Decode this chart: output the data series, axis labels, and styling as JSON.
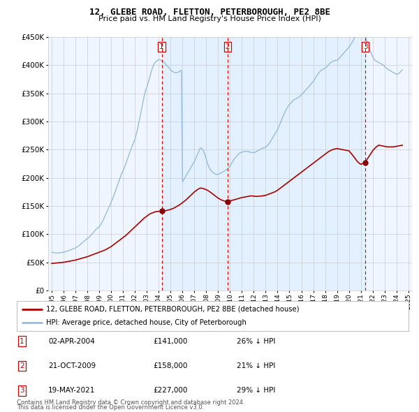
{
  "title": "12, GLEBE ROAD, FLETTON, PETERBOROUGH, PE2 8BE",
  "subtitle": "Price paid vs. HM Land Registry's House Price Index (HPI)",
  "legend_line1": "12, GLEBE ROAD, FLETTON, PETERBOROUGH, PE2 8BE (detached house)",
  "legend_line2": "HPI: Average price, detached house, City of Peterborough",
  "footnote1": "Contains HM Land Registry data © Crown copyright and database right 2024.",
  "footnote2": "This data is licensed under the Open Government Licence v3.0.",
  "sales": [
    {
      "num": 1,
      "date": "02-APR-2004",
      "price": 141000,
      "pct": "26%",
      "direction": "↓",
      "x_year": 2004.25
    },
    {
      "num": 2,
      "date": "21-OCT-2009",
      "price": 158000,
      "pct": "21%",
      "direction": "↓",
      "x_year": 2009.8
    },
    {
      "num": 3,
      "date": "19-MAY-2021",
      "price": 227000,
      "pct": "29%",
      "direction": "↓",
      "x_year": 2021.38
    }
  ],
  "price_line_color": "#aa0000",
  "hpi_line_color": "#99bbdd",
  "sale_marker_color": "#880000",
  "vline_color": "#cc0000",
  "grid_color": "#cccccc",
  "background_color": "#ffffff",
  "plot_bg_color": "#ddeeff",
  "shade_color": "#ddeeff",
  "ylim": [
    0,
    450000
  ],
  "xlim_start": 1994.7,
  "xlim_end": 2025.3,
  "hpi_years": [
    1995.0,
    1995.083,
    1995.167,
    1995.25,
    1995.333,
    1995.417,
    1995.5,
    1995.583,
    1995.667,
    1995.75,
    1995.833,
    1995.917,
    1996.0,
    1996.083,
    1996.167,
    1996.25,
    1996.333,
    1996.417,
    1996.5,
    1996.583,
    1996.667,
    1996.75,
    1996.833,
    1996.917,
    1997.0,
    1997.083,
    1997.167,
    1997.25,
    1997.333,
    1997.417,
    1997.5,
    1997.583,
    1997.667,
    1997.75,
    1997.833,
    1997.917,
    1998.0,
    1998.083,
    1998.167,
    1998.25,
    1998.333,
    1998.417,
    1998.5,
    1998.583,
    1998.667,
    1998.75,
    1998.833,
    1998.917,
    1999.0,
    1999.083,
    1999.167,
    1999.25,
    1999.333,
    1999.417,
    1999.5,
    1999.583,
    1999.667,
    1999.75,
    1999.833,
    1999.917,
    2000.0,
    2000.083,
    2000.167,
    2000.25,
    2000.333,
    2000.417,
    2000.5,
    2000.583,
    2000.667,
    2000.75,
    2000.833,
    2000.917,
    2001.0,
    2001.083,
    2001.167,
    2001.25,
    2001.333,
    2001.417,
    2001.5,
    2001.583,
    2001.667,
    2001.75,
    2001.833,
    2001.917,
    2002.0,
    2002.083,
    2002.167,
    2002.25,
    2002.333,
    2002.417,
    2002.5,
    2002.583,
    2002.667,
    2002.75,
    2002.833,
    2002.917,
    2003.0,
    2003.083,
    2003.167,
    2003.25,
    2003.333,
    2003.417,
    2003.5,
    2003.583,
    2003.667,
    2003.75,
    2003.833,
    2003.917,
    2004.0,
    2004.083,
    2004.167,
    2004.25,
    2004.333,
    2004.417,
    2004.5,
    2004.583,
    2004.667,
    2004.75,
    2004.833,
    2004.917,
    2005.0,
    2005.083,
    2005.167,
    2005.25,
    2005.333,
    2005.417,
    2005.5,
    2005.583,
    2005.667,
    2005.75,
    2005.833,
    2005.917,
    2006.0,
    2006.083,
    2006.167,
    2006.25,
    2006.333,
    2006.417,
    2006.5,
    2006.583,
    2006.667,
    2006.75,
    2006.833,
    2006.917,
    2007.0,
    2007.083,
    2007.167,
    2007.25,
    2007.333,
    2007.417,
    2007.5,
    2007.583,
    2007.667,
    2007.75,
    2007.833,
    2007.917,
    2008.0,
    2008.083,
    2008.167,
    2008.25,
    2008.333,
    2008.417,
    2008.5,
    2008.583,
    2008.667,
    2008.75,
    2008.833,
    2008.917,
    2009.0,
    2009.083,
    2009.167,
    2009.25,
    2009.333,
    2009.417,
    2009.5,
    2009.583,
    2009.667,
    2009.75,
    2009.833,
    2009.917,
    2010.0,
    2010.083,
    2010.167,
    2010.25,
    2010.333,
    2010.417,
    2010.5,
    2010.583,
    2010.667,
    2010.75,
    2010.833,
    2010.917,
    2011.0,
    2011.083,
    2011.167,
    2011.25,
    2011.333,
    2011.417,
    2011.5,
    2011.583,
    2011.667,
    2011.75,
    2011.833,
    2011.917,
    2012.0,
    2012.083,
    2012.167,
    2012.25,
    2012.333,
    2012.417,
    2012.5,
    2012.583,
    2012.667,
    2012.75,
    2012.833,
    2012.917,
    2013.0,
    2013.083,
    2013.167,
    2013.25,
    2013.333,
    2013.417,
    2013.5,
    2013.583,
    2013.667,
    2013.75,
    2013.833,
    2013.917,
    2014.0,
    2014.083,
    2014.167,
    2014.25,
    2014.333,
    2014.417,
    2014.5,
    2014.583,
    2014.667,
    2014.75,
    2014.833,
    2014.917,
    2015.0,
    2015.083,
    2015.167,
    2015.25,
    2015.333,
    2015.417,
    2015.5,
    2015.583,
    2015.667,
    2015.75,
    2015.833,
    2015.917,
    2016.0,
    2016.083,
    2016.167,
    2016.25,
    2016.333,
    2016.417,
    2016.5,
    2016.583,
    2016.667,
    2016.75,
    2016.833,
    2016.917,
    2017.0,
    2017.083,
    2017.167,
    2017.25,
    2017.333,
    2017.417,
    2017.5,
    2017.583,
    2017.667,
    2017.75,
    2017.833,
    2017.917,
    2018.0,
    2018.083,
    2018.167,
    2018.25,
    2018.333,
    2018.417,
    2018.5,
    2018.583,
    2018.667,
    2018.75,
    2018.833,
    2018.917,
    2019.0,
    2019.083,
    2019.167,
    2019.25,
    2019.333,
    2019.417,
    2019.5,
    2019.583,
    2019.667,
    2019.75,
    2019.833,
    2019.917,
    2020.0,
    2020.083,
    2020.167,
    2020.25,
    2020.333,
    2020.417,
    2020.5,
    2020.583,
    2020.667,
    2020.75,
    2020.833,
    2020.917,
    2021.0,
    2021.083,
    2021.167,
    2021.25,
    2021.333,
    2021.417,
    2021.5,
    2021.583,
    2021.667,
    2021.75,
    2021.833,
    2021.917,
    2022.0,
    2022.083,
    2022.167,
    2022.25,
    2022.333,
    2022.417,
    2022.5,
    2022.583,
    2022.667,
    2022.75,
    2022.833,
    2022.917,
    2023.0,
    2023.083,
    2023.167,
    2023.25,
    2023.333,
    2023.417,
    2023.5,
    2023.583,
    2023.667,
    2023.75,
    2023.833,
    2023.917,
    2024.0,
    2024.083,
    2024.167,
    2024.25,
    2024.333,
    2024.417,
    2024.5
  ],
  "hpi_values": [
    68000,
    67500,
    67200,
    67000,
    66800,
    66700,
    66600,
    66700,
    66900,
    67100,
    67400,
    67700,
    68000,
    68400,
    68900,
    69500,
    70100,
    70700,
    71400,
    72100,
    72800,
    73500,
    74100,
    74800,
    75500,
    76500,
    77600,
    79000,
    80500,
    82000,
    83500,
    85000,
    86500,
    88000,
    89500,
    91000,
    92000,
    93500,
    95000,
    97000,
    99000,
    101000,
    103000,
    105000,
    107000,
    109000,
    110500,
    112000,
    113500,
    116000,
    118500,
    122000,
    125500,
    129000,
    133000,
    137000,
    141000,
    145000,
    149000,
    153000,
    157000,
    161000,
    165500,
    170000,
    175000,
    180000,
    185000,
    190000,
    195000,
    200000,
    205000,
    209000,
    213000,
    217000,
    221000,
    226000,
    231000,
    236000,
    241000,
    246000,
    251000,
    256000,
    260000,
    264000,
    268000,
    275000,
    282000,
    290000,
    299000,
    307000,
    316000,
    325000,
    334000,
    342000,
    350000,
    357000,
    361000,
    367000,
    373000,
    379000,
    386000,
    392000,
    397000,
    401000,
    404000,
    406000,
    408000,
    409000,
    410000,
    410000,
    409000,
    408000,
    407000,
    406000,
    404000,
    402000,
    400000,
    398000,
    396000,
    394000,
    392000,
    390000,
    389000,
    388000,
    387000,
    387000,
    387000,
    387000,
    388000,
    389000,
    390000,
    391000,
    193000,
    196000,
    199000,
    202000,
    205000,
    208000,
    211000,
    214000,
    217000,
    220000,
    223000,
    226000,
    229000,
    233000,
    237000,
    241000,
    245000,
    249000,
    253000,
    253000,
    251000,
    248000,
    244000,
    239000,
    233000,
    227000,
    222000,
    218000,
    215000,
    213000,
    211000,
    209000,
    208000,
    207000,
    206000,
    206000,
    206000,
    207000,
    208000,
    209000,
    210000,
    211000,
    212000,
    213000,
    214000,
    215000,
    217000,
    219000,
    221000,
    224000,
    227000,
    230000,
    233000,
    235000,
    237000,
    239000,
    241000,
    243000,
    244000,
    245000,
    246000,
    246000,
    247000,
    247000,
    247000,
    247000,
    247000,
    246000,
    246000,
    245000,
    245000,
    245000,
    245000,
    245000,
    246000,
    247000,
    248000,
    249000,
    250000,
    251000,
    252000,
    253000,
    253000,
    254000,
    255000,
    256000,
    258000,
    260000,
    262000,
    265000,
    268000,
    271000,
    274000,
    277000,
    280000,
    283000,
    286000,
    290000,
    294000,
    298000,
    303000,
    307000,
    311000,
    315000,
    319000,
    322000,
    325000,
    328000,
    330000,
    332000,
    334000,
    336000,
    338000,
    339000,
    340000,
    341000,
    342000,
    343000,
    344000,
    346000,
    347000,
    349000,
    351000,
    353000,
    355000,
    357000,
    359000,
    361000,
    363000,
    365000,
    367000,
    369000,
    371000,
    374000,
    377000,
    380000,
    383000,
    385000,
    387000,
    389000,
    391000,
    392000,
    393000,
    394000,
    395000,
    396000,
    398000,
    400000,
    402000,
    404000,
    405000,
    406000,
    407000,
    408000,
    408000,
    409000,
    409000,
    410000,
    412000,
    414000,
    416000,
    418000,
    420000,
    422000,
    424000,
    426000,
    428000,
    430000,
    432000,
    434000,
    437000,
    440000,
    443000,
    446000,
    450000,
    453000,
    456000,
    458000,
    460000,
    461000,
    462000,
    462000,
    460000,
    457000,
    453000,
    449000,
    444000,
    439000,
    434000,
    429000,
    424000,
    419000,
    415000,
    412000,
    410000,
    408000,
    407000,
    406000,
    405000,
    404000,
    403000,
    402000,
    401000,
    400000,
    398000,
    396000,
    395000,
    393000,
    392000,
    391000,
    390000,
    389000,
    388000,
    387000,
    386000,
    385000,
    384000,
    384000,
    385000,
    386000,
    388000,
    390000,
    392000
  ],
  "price_years": [
    1995.0,
    1995.25,
    1995.5,
    1995.75,
    1996.0,
    1996.25,
    1996.5,
    1996.75,
    1997.0,
    1997.25,
    1997.5,
    1997.75,
    1998.0,
    1998.25,
    1998.5,
    1998.75,
    1999.0,
    1999.25,
    1999.5,
    1999.75,
    2000.0,
    2000.25,
    2000.5,
    2000.75,
    2001.0,
    2001.25,
    2001.5,
    2001.75,
    2002.0,
    2002.25,
    2002.5,
    2002.75,
    2003.0,
    2003.25,
    2003.5,
    2003.75,
    2004.0,
    2004.25,
    2004.25,
    2004.5,
    2004.75,
    2005.0,
    2005.25,
    2005.5,
    2005.75,
    2006.0,
    2006.25,
    2006.5,
    2006.75,
    2007.0,
    2007.25,
    2007.5,
    2007.75,
    2008.0,
    2008.25,
    2008.5,
    2008.75,
    2009.0,
    2009.25,
    2009.5,
    2009.8,
    2009.8,
    2010.0,
    2010.25,
    2010.5,
    2010.75,
    2011.0,
    2011.25,
    2011.5,
    2011.75,
    2012.0,
    2012.25,
    2012.5,
    2012.75,
    2013.0,
    2013.25,
    2013.5,
    2013.75,
    2014.0,
    2014.25,
    2014.5,
    2014.75,
    2015.0,
    2015.25,
    2015.5,
    2015.75,
    2016.0,
    2016.25,
    2016.5,
    2016.75,
    2017.0,
    2017.25,
    2017.5,
    2017.75,
    2018.0,
    2018.25,
    2018.5,
    2018.75,
    2019.0,
    2019.25,
    2019.5,
    2019.75,
    2020.0,
    2020.25,
    2020.5,
    2020.75,
    2021.0,
    2021.38,
    2021.38,
    2021.5,
    2021.75,
    2022.0,
    2022.25,
    2022.5,
    2022.75,
    2023.0,
    2023.25,
    2023.5,
    2023.75,
    2024.0,
    2024.25,
    2024.5
  ],
  "price_values": [
    48000,
    48500,
    49000,
    49500,
    50000,
    51000,
    52000,
    53000,
    54000,
    55500,
    57000,
    58500,
    60000,
    62000,
    64000,
    66000,
    68000,
    70000,
    72000,
    75000,
    78000,
    82000,
    86000,
    90000,
    94000,
    98000,
    103000,
    108000,
    113000,
    118000,
    123000,
    128000,
    132000,
    136000,
    138000,
    140000,
    140500,
    141000,
    141000,
    141500,
    142500,
    144000,
    146000,
    149000,
    152000,
    156000,
    160000,
    165000,
    170000,
    175000,
    179000,
    182000,
    181000,
    179000,
    176000,
    172000,
    168000,
    164000,
    161000,
    159000,
    158000,
    158000,
    159000,
    160500,
    162000,
    163500,
    165000,
    166000,
    167000,
    168000,
    167500,
    167000,
    167500,
    168000,
    169000,
    171000,
    173000,
    175000,
    178000,
    182000,
    186000,
    190000,
    194000,
    198000,
    202000,
    206000,
    210000,
    214000,
    218000,
    222000,
    226000,
    230000,
    234000,
    238000,
    242000,
    246000,
    249000,
    251000,
    252000,
    251000,
    250000,
    249000,
    248000,
    242000,
    235000,
    228000,
    224000,
    227000,
    227000,
    232000,
    240000,
    248000,
    254000,
    258000,
    257000,
    256000,
    255000,
    255000,
    255000,
    256000,
    257000,
    258000
  ]
}
